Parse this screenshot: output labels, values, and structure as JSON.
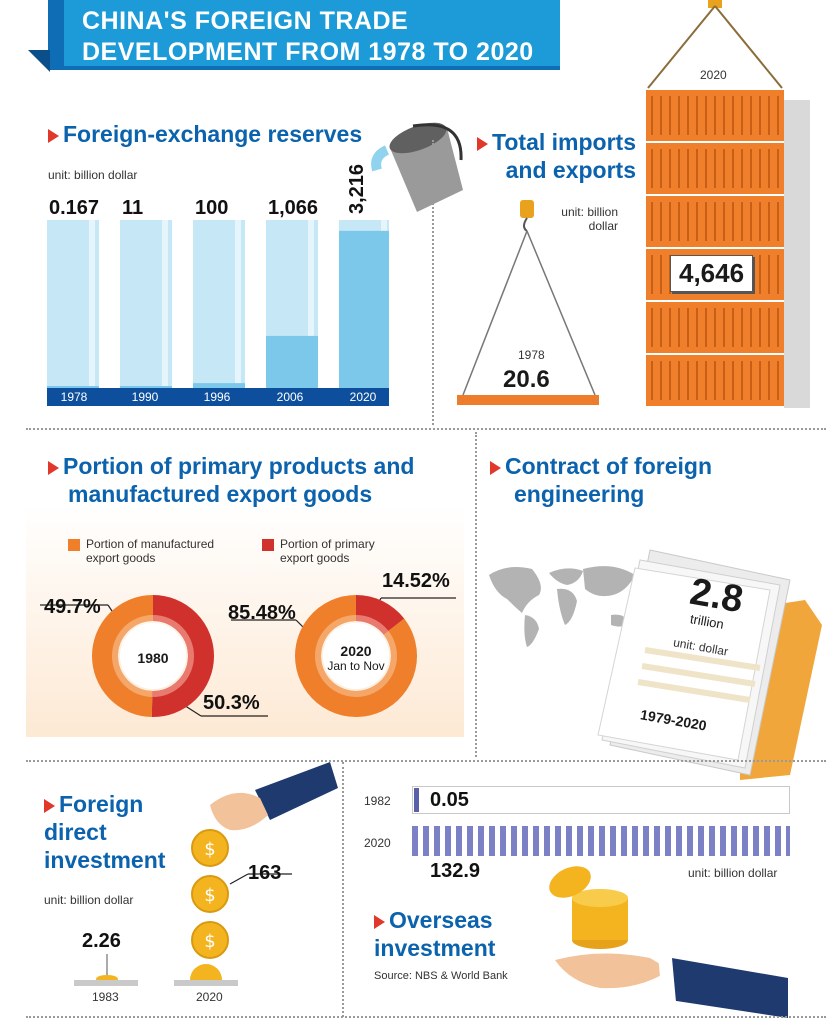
{
  "header": {
    "title_line1": "CHINA'S FOREIGN TRADE",
    "title_line2": "DEVELOPMENT FROM 1978 TO 2020"
  },
  "reserves": {
    "title": "Foreign-exchange reserves",
    "unit": "unit: billion dollar"
  },
  "trade": {
    "title_line1": "Total imports",
    "title_line2": "and exports",
    "unit_line1": "unit: billion",
    "unit_line2": "dollar",
    "year_1978": "1978",
    "value_1978": "20.6",
    "year_2020": "2020",
    "value_2020": "4,646"
  },
  "portion": {
    "title_line1": "Portion of primary products and",
    "title_line2": "manufactured export goods",
    "legend_manufactured_1": "Portion of manufactured",
    "legend_manufactured_2": "export goods",
    "legend_primary_1": "Portion of primary",
    "legend_primary_2": "export goods",
    "donut1_label": "1980",
    "donut1_left": "49.7%",
    "donut1_right": "50.3%",
    "donut2_label_1": "2020",
    "donut2_label_2": "Jan to Nov",
    "donut2_left": "85.48%",
    "donut2_right": "14.52%"
  },
  "engineering": {
    "title_line1": "Contract of foreign",
    "title_line2": "engineering",
    "value": "2.8",
    "value_unit": "trillion",
    "unit": "unit: dollar",
    "period": "1979-2020"
  },
  "fdi": {
    "title_line1": "Foreign",
    "title_line2": "direct",
    "title_line3": "investment",
    "unit": "unit: billion dollar",
    "value_1983": "2.26",
    "year_1983": "1983",
    "value_2020": "163",
    "year_2020": "2020"
  },
  "overseas": {
    "title_line1": "Overseas",
    "title_line2": "investment",
    "year_1982": "1982",
    "value_1982": "0.05",
    "year_2020": "2020",
    "value_2020": "132.9",
    "unit": "unit: billion dollar",
    "source": "Source: NBS & World Bank"
  },
  "colors": {
    "blue_title": "#0b62ad",
    "orange": "#ef7f2a",
    "red": "#d0312d",
    "light_blue": "#7cc8ea"
  },
  "chart_data": [
    {
      "type": "bar",
      "title": "Foreign-exchange reserves",
      "ylabel": "unit: billion dollar",
      "categories": [
        "1978",
        "1990",
        "1996",
        "2006",
        "2020"
      ],
      "values": [
        0.167,
        11,
        100,
        1066,
        3216
      ],
      "value_labels": [
        "0.167",
        "11",
        "100",
        "1,066",
        "3,216"
      ]
    },
    {
      "type": "bar",
      "title": "Total imports and exports",
      "ylabel": "unit: billion dollar",
      "categories": [
        "1978",
        "2020"
      ],
      "values": [
        20.6,
        4646
      ]
    },
    {
      "type": "pie",
      "title": "Portion of primary products and manufactured export goods",
      "categories": [
        "1980",
        "2020 Jan to Nov"
      ],
      "series": [
        {
          "name": "Portion of manufactured export goods",
          "values": [
            49.7,
            85.48
          ]
        },
        {
          "name": "Portion of primary export goods",
          "values": [
            50.3,
            14.52
          ]
        }
      ]
    },
    {
      "type": "bar",
      "title": "Foreign direct investment",
      "ylabel": "unit: billion dollar",
      "categories": [
        "1983",
        "2020"
      ],
      "values": [
        2.26,
        163
      ]
    },
    {
      "type": "bar",
      "title": "Overseas investment",
      "ylabel": "unit: billion dollar",
      "categories": [
        "1982",
        "2020"
      ],
      "values": [
        0.05,
        132.9
      ]
    }
  ]
}
